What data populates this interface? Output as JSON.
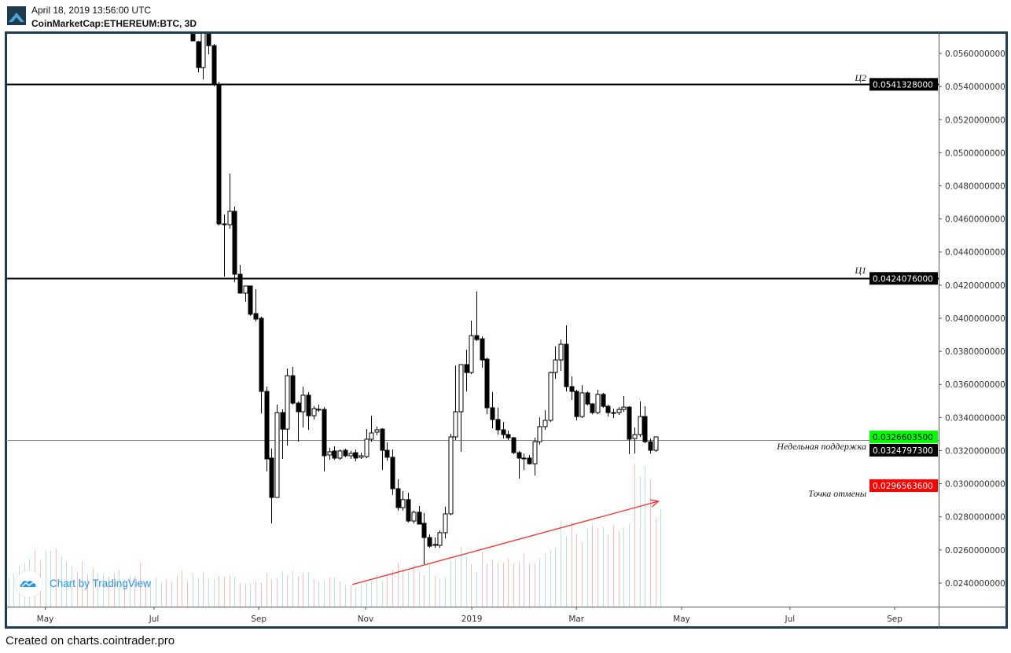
{
  "header": {
    "date": "April 18, 2019 13:56:00 UTC",
    "symbol": "CoinMarketCap:ETHEREUM:BTC, 3D"
  },
  "footer": "Created on charts.cointrader.pro",
  "watermark": "Chart by TradingView",
  "colors": {
    "frame": "#1f3b50",
    "up_volume": "#b9e3d2",
    "down_volume": "#f9bcbc",
    "support_tag": "#00ff00",
    "invalidation_tag": "#ff0000",
    "trend_arrow": "#ff2a2a",
    "weekly_line": "#888888"
  },
  "chart_data": {
    "type": "candlestick",
    "title": "CoinMarketCap:ETHEREUM:BTC, 3D",
    "ylim": [
      0.0223,
      0.0577
    ],
    "y_ticks": [
      "0.0560000000",
      "0.0540000000",
      "0.0520000000",
      "0.0500000000",
      "0.0480000000",
      "0.0460000000",
      "0.0440000000",
      "0.0420000000",
      "0.0400000000",
      "0.0380000000",
      "0.0360000000",
      "0.0340000000",
      "0.0320000000",
      "0.0300000000",
      "0.0280000000",
      "0.0260000000",
      "0.0240000000"
    ],
    "x_labels": [
      {
        "label": "May",
        "bar": 7
      },
      {
        "label": "Jul",
        "bar": 27.7
      },
      {
        "label": "Sep",
        "bar": 47.6
      },
      {
        "label": "Nov",
        "bar": 67.9
      },
      {
        "label": "2019",
        "bar": 88.1
      },
      {
        "label": "Mar",
        "bar": 108
      },
      {
        "label": "May",
        "bar": 128
      },
      {
        "label": "Jul",
        "bar": 148.6
      },
      {
        "label": "Sep",
        "bar": 168.5
      }
    ],
    "candles_first_bar": 35,
    "candles_ohlc": [
      [
        0.05733,
        0.05743,
        0.05676,
        0.05676
      ],
      [
        0.05671,
        0.05676,
        0.05486,
        0.05515
      ],
      [
        0.05515,
        0.05743,
        0.05443,
        0.05733
      ],
      [
        0.05733,
        0.05743,
        0.05595,
        0.05647
      ],
      [
        0.05647,
        0.05657,
        0.05401,
        0.0541
      ],
      [
        0.0541,
        0.05429,
        0.0456,
        0.0457
      ],
      [
        0.0457,
        0.04627,
        0.04252,
        0.04565
      ],
      [
        0.04565,
        0.04874,
        0.04541,
        0.04646
      ],
      [
        0.04646,
        0.04674,
        0.04218,
        0.04266
      ],
      [
        0.04266,
        0.04323,
        0.04152,
        0.04152
      ],
      [
        0.04152,
        0.04195,
        0.041,
        0.04195
      ],
      [
        0.04195,
        0.04195,
        0.04014,
        0.04024
      ],
      [
        0.04028,
        0.04176,
        0.03981,
        0.03995
      ],
      [
        0.04,
        0.0401,
        0.03425,
        0.03558
      ],
      [
        0.03558,
        0.03587,
        0.03074,
        0.0315
      ],
      [
        0.03155,
        0.03212,
        0.02761,
        0.02917
      ],
      [
        0.02917,
        0.03478,
        0.02917,
        0.0343
      ],
      [
        0.0343,
        0.03449,
        0.0315,
        0.0333
      ],
      [
        0.0333,
        0.03696,
        0.03231,
        0.03653
      ],
      [
        0.03653,
        0.03706,
        0.03478,
        0.03487
      ],
      [
        0.03487,
        0.03497,
        0.03254,
        0.03435
      ],
      [
        0.03435,
        0.03587,
        0.0334,
        0.03535
      ],
      [
        0.03535,
        0.03554,
        0.03326,
        0.03411
      ],
      [
        0.03411,
        0.03468,
        0.03388,
        0.03454
      ],
      [
        0.03449,
        0.03478,
        0.03435,
        0.0345
      ],
      [
        0.03449,
        0.03463,
        0.03074,
        0.03169
      ],
      [
        0.03174,
        0.03217,
        0.03145,
        0.03193
      ],
      [
        0.03198,
        0.03226,
        0.03145,
        0.03155
      ],
      [
        0.03155,
        0.03207,
        0.03145,
        0.03198
      ],
      [
        0.03202,
        0.03212,
        0.0316,
        0.03169
      ],
      [
        0.03169,
        0.03198,
        0.0315,
        0.03183
      ],
      [
        0.03188,
        0.03207,
        0.03136,
        0.03155
      ],
      [
        0.0316,
        0.03188,
        0.0315,
        0.03169
      ],
      [
        0.03164,
        0.0333,
        0.03155,
        0.03269
      ],
      [
        0.03269,
        0.03411,
        0.03254,
        0.03307
      ],
      [
        0.03312,
        0.03345,
        0.03293,
        0.03326
      ],
      [
        0.0333,
        0.03335,
        0.03083,
        0.03202
      ],
      [
        0.03202,
        0.0325,
        0.0314,
        0.0316
      ],
      [
        0.0316,
        0.03207,
        0.02932,
        0.0297
      ],
      [
        0.0297,
        0.03027,
        0.02837,
        0.02856
      ],
      [
        0.02856,
        0.02956,
        0.02837,
        0.02904
      ],
      [
        0.02904,
        0.02946,
        0.02766,
        0.02775
      ],
      [
        0.02775,
        0.02837,
        0.0276,
        0.02828
      ],
      [
        0.02828,
        0.02866,
        0.02756,
        0.02756
      ],
      [
        0.02761,
        0.02823,
        0.02514,
        0.02675
      ],
      [
        0.02675,
        0.02694,
        0.02613,
        0.02623
      ],
      [
        0.02628,
        0.02675,
        0.02613,
        0.02633
      ],
      [
        0.02628,
        0.02718,
        0.02613,
        0.02704
      ],
      [
        0.02704,
        0.02861,
        0.0267,
        0.02818
      ],
      [
        0.02818,
        0.03302,
        0.02809,
        0.03283
      ],
      [
        0.03283,
        0.03715,
        0.03264,
        0.03435
      ],
      [
        0.03435,
        0.0372,
        0.03193,
        0.0372
      ],
      [
        0.0372,
        0.0381,
        0.03558,
        0.03672
      ],
      [
        0.03672,
        0.03986,
        0.03662,
        0.03895
      ],
      [
        0.03895,
        0.04162,
        0.03862,
        0.03871
      ],
      [
        0.03876,
        0.0389,
        0.03701,
        0.03748
      ],
      [
        0.03753,
        0.03762,
        0.0342,
        0.03459
      ],
      [
        0.03459,
        0.03554,
        0.03335,
        0.03388
      ],
      [
        0.03388,
        0.03459,
        0.03297,
        0.03326
      ],
      [
        0.03326,
        0.03373,
        0.03273,
        0.03297
      ],
      [
        0.03297,
        0.03321,
        0.03264,
        0.03278
      ],
      [
        0.03278,
        0.03283,
        0.03179,
        0.03188
      ],
      [
        0.03188,
        0.03198,
        0.03031,
        0.03155
      ],
      [
        0.03155,
        0.03183,
        0.03083,
        0.0315
      ],
      [
        0.03155,
        0.03174,
        0.03117,
        0.03121
      ],
      [
        0.03121,
        0.03278,
        0.0305,
        0.03254
      ],
      [
        0.03254,
        0.03401,
        0.03236,
        0.03345
      ],
      [
        0.03345,
        0.03444,
        0.03326,
        0.03383
      ],
      [
        0.03383,
        0.03677,
        0.03373,
        0.03672
      ],
      [
        0.03672,
        0.0383,
        0.03634,
        0.03748
      ],
      [
        0.03748,
        0.03871,
        0.03682,
        0.03843
      ],
      [
        0.03843,
        0.03957,
        0.03558,
        0.03587
      ],
      [
        0.03587,
        0.03648,
        0.03506,
        0.03558
      ],
      [
        0.03558,
        0.03568,
        0.03383,
        0.03406
      ],
      [
        0.03406,
        0.03596,
        0.03397,
        0.03549
      ],
      [
        0.03549,
        0.03558,
        0.03473,
        0.03482
      ],
      [
        0.03482,
        0.03487,
        0.0342,
        0.0343
      ],
      [
        0.0343,
        0.03568,
        0.0342,
        0.0354
      ],
      [
        0.0354,
        0.03549,
        0.03459,
        0.03468
      ],
      [
        0.03468,
        0.03478,
        0.03406,
        0.0343
      ],
      [
        0.0343,
        0.03454,
        0.03397,
        0.03425
      ],
      [
        0.0343,
        0.03463,
        0.03416,
        0.03449
      ],
      [
        0.03449,
        0.0353,
        0.03435,
        0.03463
      ],
      [
        0.03463,
        0.03468,
        0.03179,
        0.03269
      ],
      [
        0.03273,
        0.0334,
        0.03183,
        0.03297
      ],
      [
        0.03297,
        0.03497,
        0.03283,
        0.03406
      ],
      [
        0.03406,
        0.03468,
        0.03245,
        0.03254
      ],
      [
        0.03254,
        0.03273,
        0.03183,
        0.03202
      ],
      [
        0.03202,
        0.03278,
        0.03193,
        0.03283
      ]
    ],
    "volume_relative": [
      37,
      41,
      52,
      56,
      61,
      72,
      59,
      71,
      71,
      74,
      64,
      57,
      52,
      45,
      58,
      41,
      49,
      42,
      41,
      38,
      42,
      47,
      35,
      39,
      39,
      57,
      32,
      32,
      37,
      31,
      35,
      31,
      40,
      46,
      32,
      42,
      36,
      43,
      35,
      35,
      39,
      38,
      40,
      38,
      30,
      29,
      30,
      32,
      31,
      43,
      35,
      36,
      45,
      39,
      46,
      39,
      43,
      44,
      35,
      33,
      33,
      37,
      38,
      32,
      27,
      27,
      24,
      29,
      31,
      33,
      41,
      32,
      40,
      47,
      56,
      47,
      45,
      53,
      44,
      40,
      54,
      39,
      36,
      38,
      58,
      61,
      76,
      64,
      54,
      44,
      70,
      55,
      60,
      56,
      56,
      61,
      55,
      57,
      67,
      55,
      55,
      62,
      67,
      72,
      74,
      110,
      89,
      107,
      93,
      81,
      99,
      104,
      100,
      101,
      92,
      104,
      96,
      101,
      105,
      181,
      166,
      178,
      161,
      113,
      124
    ],
    "volume_up": [
      1,
      1,
      1,
      1,
      1,
      0,
      0,
      1,
      1,
      0,
      1,
      1,
      1,
      0,
      0,
      0,
      0,
      1,
      1,
      0,
      0,
      1,
      0,
      1,
      0,
      0,
      0,
      1,
      1,
      1,
      0,
      0,
      0,
      0,
      0,
      1,
      1,
      0,
      1,
      1,
      0,
      0,
      0,
      1,
      0,
      0,
      1,
      0,
      0,
      0,
      0,
      0,
      1,
      0,
      1,
      0,
      0,
      1,
      0,
      1,
      1,
      0,
      1,
      0,
      1,
      0,
      1,
      1,
      1,
      1,
      1,
      1,
      0,
      0,
      0,
      0,
      1,
      0,
      1,
      0,
      1,
      0,
      1,
      1,
      1,
      1,
      1,
      1,
      0,
      1,
      0,
      0,
      0,
      0,
      0,
      0,
      0,
      0,
      0,
      0,
      0,
      1,
      1,
      1,
      1,
      1,
      1,
      0,
      0,
      0,
      1,
      0,
      0,
      1,
      0,
      0,
      0,
      1,
      1,
      0,
      1,
      1,
      0,
      0,
      1
    ],
    "levels": [
      {
        "name": "resistance-2",
        "label": "Ц2",
        "price": 0.0541328,
        "tag": "0.0541328000",
        "tag_color": "#000000"
      },
      {
        "name": "resistance-1",
        "label": "Ц1",
        "price": 0.0424076,
        "tag": "0.0424076000",
        "tag_color": "#000000"
      }
    ],
    "weekly_support": {
      "label": "Недельная поддержка",
      "price": 0.03266035,
      "tag": "0.0326603500",
      "last_price_tag": "0.0324797300",
      "last_price": 0.03248
    },
    "invalidation": {
      "label": "Точка отмены",
      "price": 0.02965636,
      "tag": "0.0296563600"
    },
    "trend_arrow": {
      "from": {
        "bar": 65.4,
        "price": 0.02391
      },
      "to": {
        "bar": 123.6,
        "price": 0.02894
      }
    }
  }
}
